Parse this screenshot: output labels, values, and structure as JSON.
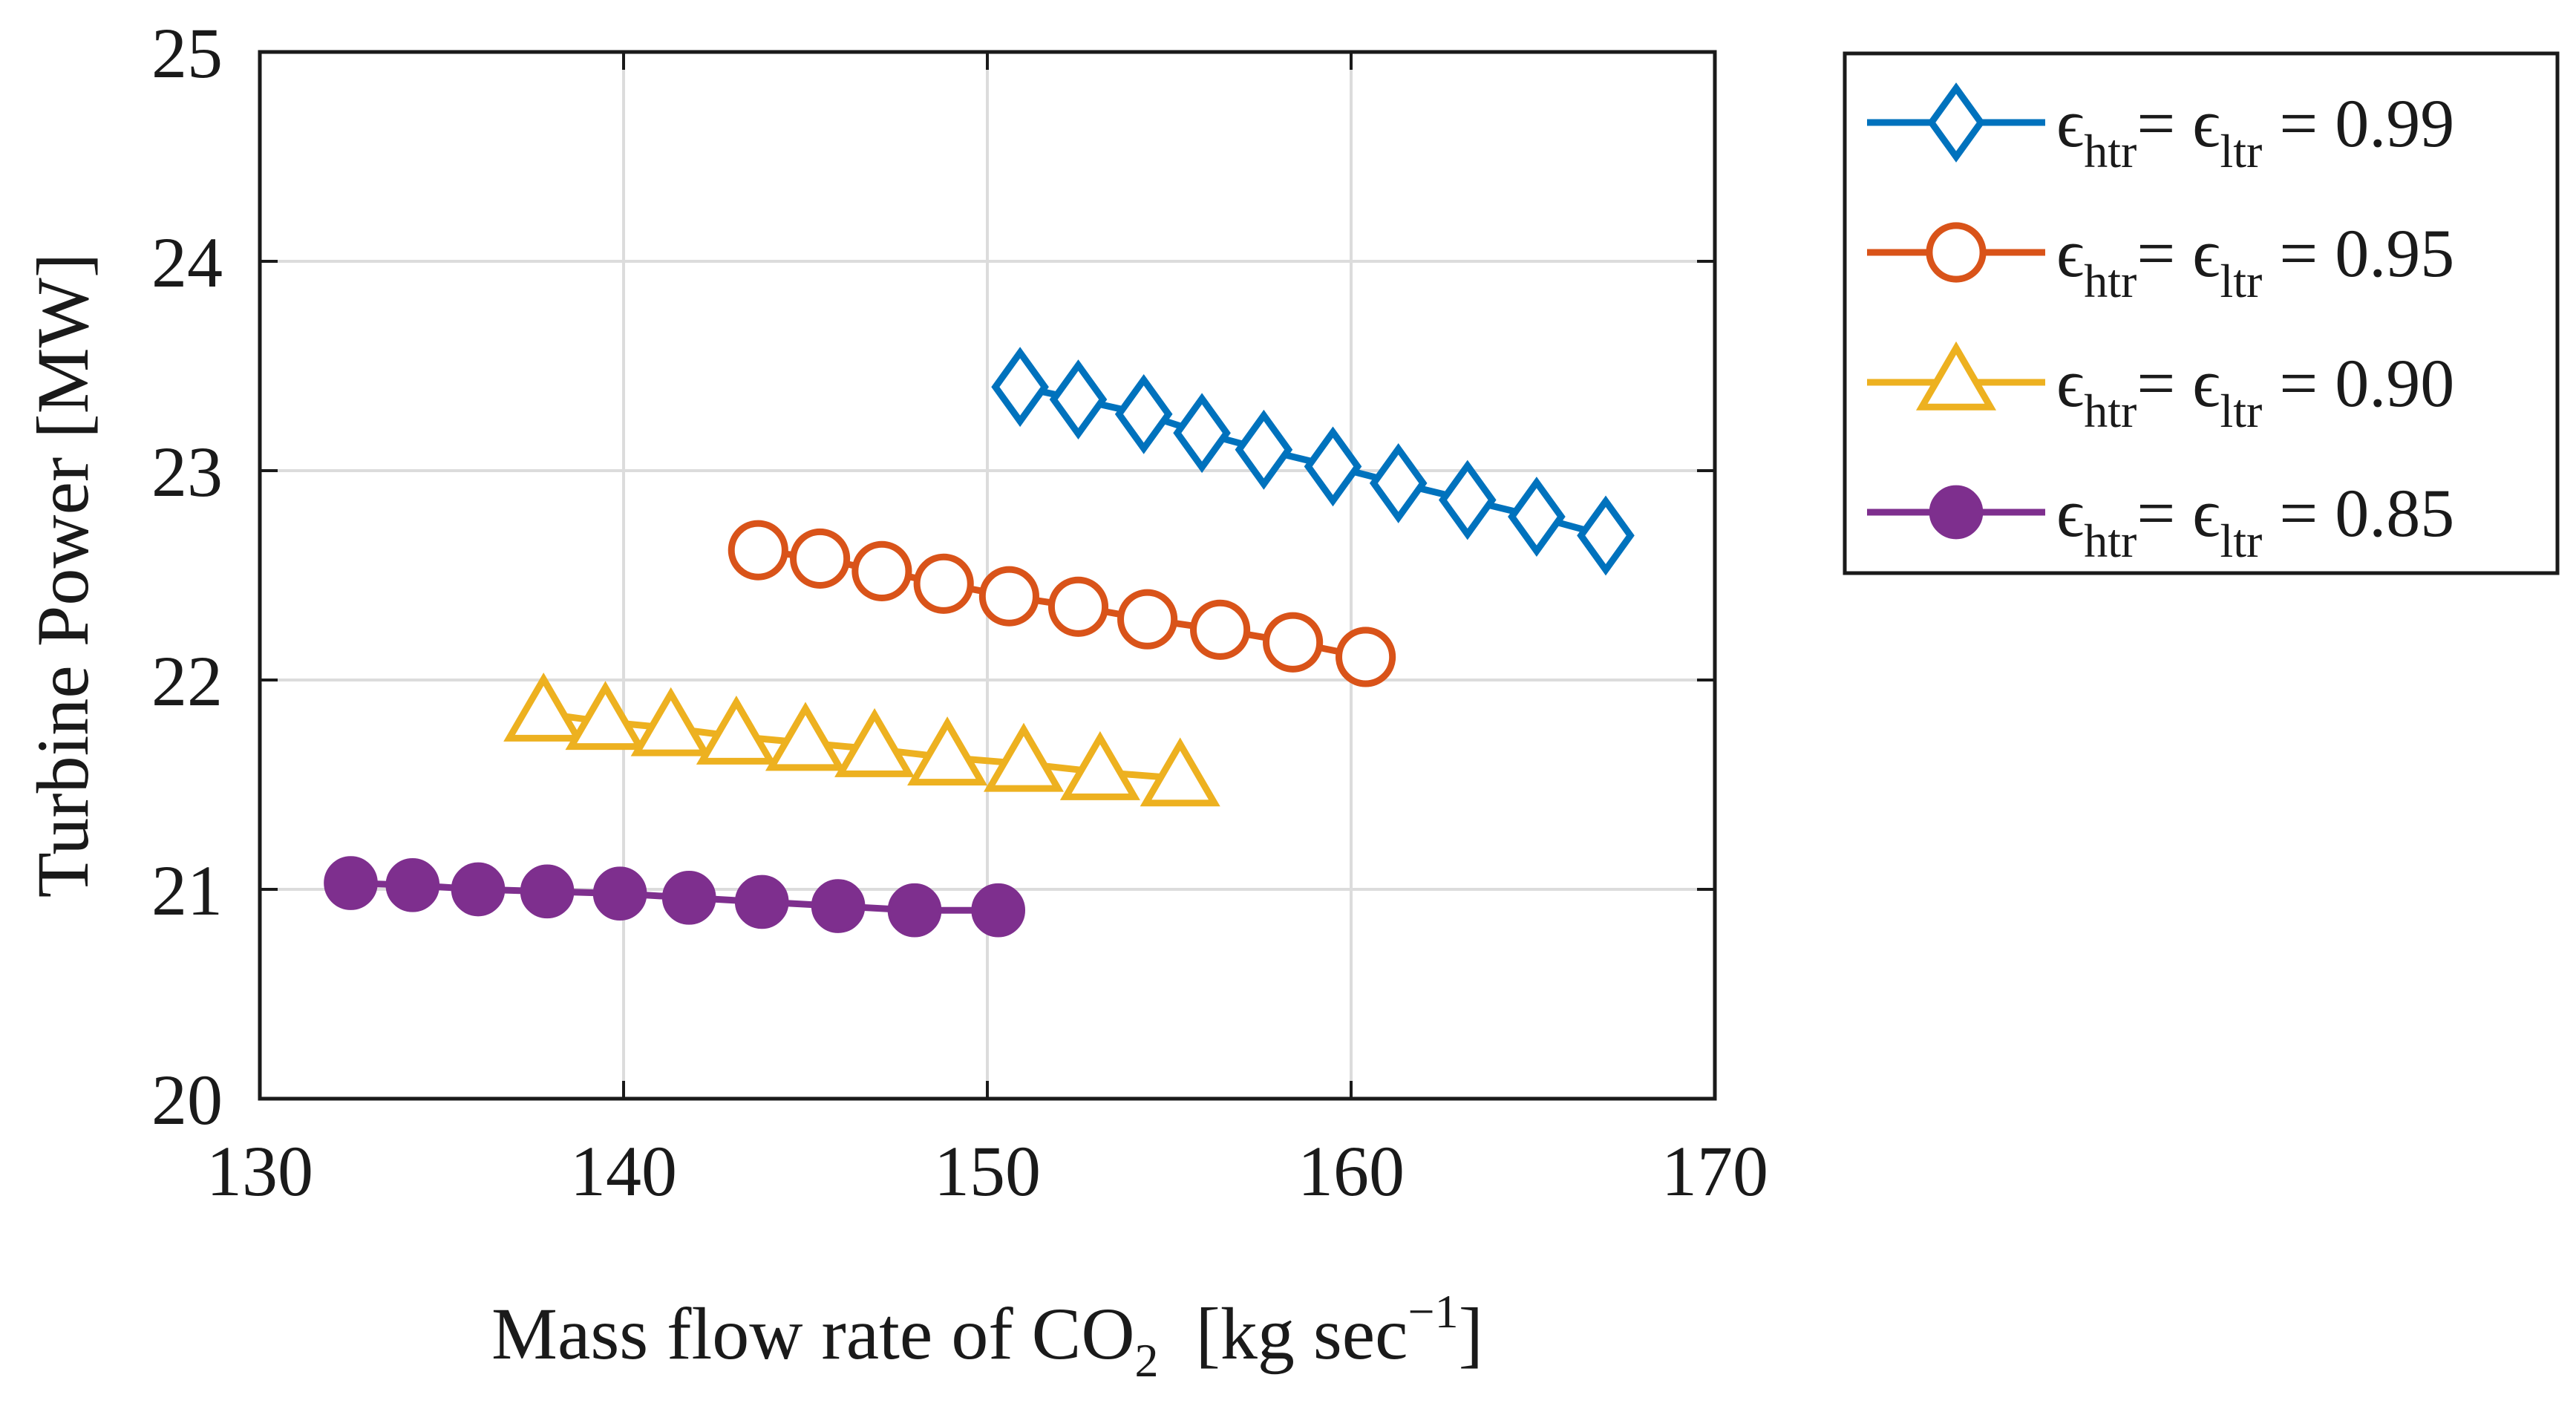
{
  "chart_data": {
    "type": "line",
    "title": "",
    "xlabel": {
      "main": "Mass flow rate of CO",
      "subscript": "2",
      "unit_open": "  [kg sec",
      "unit_sup": "−1",
      "unit_close": "]"
    },
    "ylabel": "Turbine Power [MW]",
    "xlim": [
      130,
      170
    ],
    "ylim": [
      20,
      25
    ],
    "xticks": [
      "130",
      "140",
      "150",
      "160",
      "170"
    ],
    "yticks": [
      "20",
      "21",
      "22",
      "23",
      "24",
      "25"
    ],
    "grid": true,
    "legend_position": "outside-top-right",
    "series": [
      {
        "name": "ϵhtr = ϵltr = 0.99",
        "legend": {
          "eps": "ϵ",
          "sub1": "htr",
          "eq": "= ",
          "sub2": "ltr",
          "tail": "= 0.99"
        },
        "color": "#0072BD",
        "marker": "diamond-open",
        "x": [
          150.9,
          152.5,
          154.3,
          155.9,
          157.6,
          159.5,
          161.3,
          163.2,
          165.1,
          167.0
        ],
        "y": [
          23.4,
          23.34,
          23.27,
          23.18,
          23.1,
          23.02,
          22.94,
          22.86,
          22.78,
          22.69
        ]
      },
      {
        "name": "ϵhtr = ϵltr = 0.95",
        "legend": {
          "eps": "ϵ",
          "sub1": "htr",
          "eq": "= ",
          "sub2": "ltr",
          "tail": "= 0.95"
        },
        "color": "#D95319",
        "marker": "circle-open",
        "x": [
          143.7,
          145.4,
          147.1,
          148.8,
          150.6,
          152.5,
          154.4,
          156.4,
          158.4,
          160.4
        ],
        "y": [
          22.62,
          22.58,
          22.52,
          22.46,
          22.4,
          22.35,
          22.29,
          22.24,
          22.18,
          22.11
        ]
      },
      {
        "name": "ϵhtr = ϵltr = 0.90",
        "legend": {
          "eps": "ϵ",
          "sub1": "htr",
          "eq": "= ",
          "sub2": "ltr",
          "tail": "= 0.90"
        },
        "color": "#EDB120",
        "marker": "triangle-open",
        "x": [
          137.8,
          139.5,
          141.3,
          143.1,
          145.0,
          146.9,
          148.9,
          151.0,
          153.1,
          155.3
        ],
        "y": [
          21.84,
          21.8,
          21.77,
          21.73,
          21.7,
          21.67,
          21.63,
          21.6,
          21.56,
          21.53
        ]
      },
      {
        "name": "ϵhtr = ϵltr = 0.85",
        "legend": {
          "eps": "ϵ",
          "sub1": "htr",
          "eq": "= ",
          "sub2": "ltr",
          "tail": "= 0.85"
        },
        "color": "#7E2F8E",
        "marker": "circle-filled",
        "x": [
          132.5,
          134.2,
          136.0,
          137.9,
          139.9,
          141.8,
          143.8,
          145.9,
          148.0,
          150.3
        ],
        "y": [
          21.03,
          21.02,
          21.0,
          20.99,
          20.98,
          20.96,
          20.94,
          20.92,
          20.9,
          20.9
        ]
      }
    ]
  }
}
